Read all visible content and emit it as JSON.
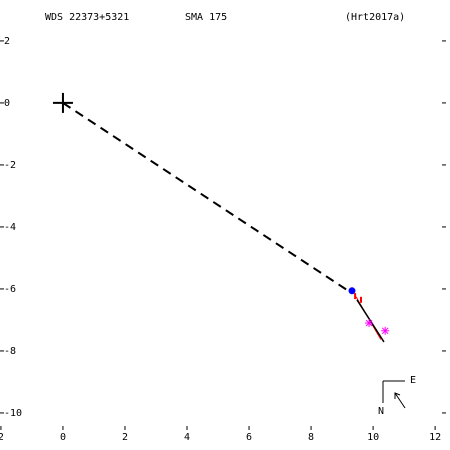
{
  "chart_data": {
    "type": "scatter",
    "title": "WDS 22373+5321",
    "subtitle": "SMA 175",
    "reference": "(Hrt2017a)",
    "xlim": [
      -2.03,
      12.48
    ],
    "ylim": [
      -10.55,
      3.32
    ],
    "xticks": [
      {
        "value": -2,
        "label": "2"
      },
      0,
      2,
      4,
      6,
      8,
      10,
      12
    ],
    "yticks": [
      2,
      0,
      -2,
      -4,
      -6,
      -8,
      -10
    ],
    "primary": {
      "x": 0,
      "y": 0
    },
    "separation_line": {
      "x": [
        0,
        9.26
      ],
      "y": [
        0,
        -6.1
      ]
    },
    "orbit": {
      "x": [
        9.48,
        10.35
      ],
      "y": [
        -6.35,
        -7.71
      ],
      "color": "#000000"
    },
    "residual_line": {
      "x": [
        9.45,
        10.25
      ],
      "y": [
        -6.25,
        -7.63
      ],
      "color": "#ff0000"
    },
    "points": [
      {
        "x": 9.32,
        "y": -6.06,
        "marker": "circle",
        "color": "#0000ff"
      },
      {
        "x": 9.42,
        "y": -6.23,
        "marker": "tick",
        "color": "#ff0000"
      },
      {
        "x": 9.61,
        "y": -6.35,
        "marker": "tick",
        "color": "#ff0000"
      },
      {
        "x": 9.87,
        "y": -7.1,
        "marker": "asterisk",
        "color": "#ff00ff"
      },
      {
        "x": 10.39,
        "y": -7.35,
        "marker": "asterisk",
        "color": "#ff00ff"
      }
    ],
    "compass": {
      "east": "E",
      "north": "N"
    }
  }
}
